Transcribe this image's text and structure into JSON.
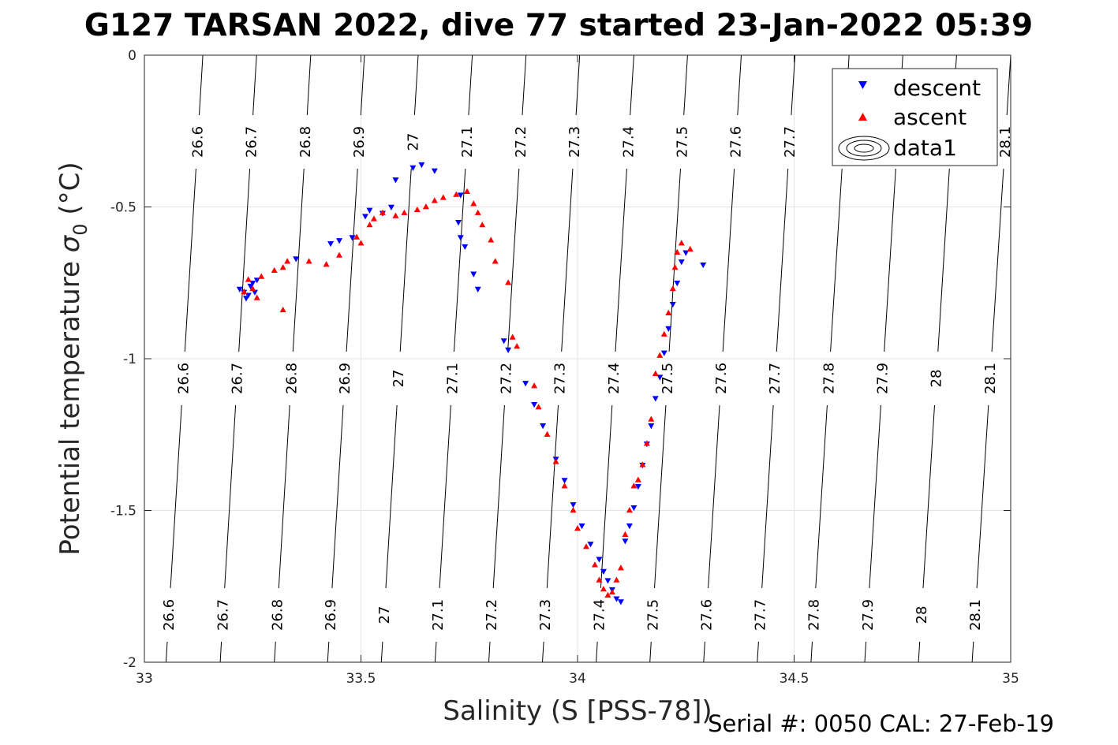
{
  "chart_data": {
    "type": "scatter",
    "title": "G127 TARSAN 2022, dive 77 started 23-Jan-2022 05:39",
    "xlabel": "Salinity (S [PSS-78])",
    "ylabel_main": "Potential temperature ",
    "ylabel_sym": "σ",
    "ylabel_sub": "0",
    "ylabel_unit": " (°C)",
    "footer": "Serial #: 0050  CAL: 27-Feb-19",
    "xlim": [
      33,
      35
    ],
    "ylim": [
      -2,
      0
    ],
    "grid": true,
    "legend_position": "top-right",
    "x_ticks": [
      {
        "value": 33,
        "label": "33"
      },
      {
        "value": 33.5,
        "label": "33.5"
      },
      {
        "value": 34,
        "label": "34"
      },
      {
        "value": 34.5,
        "label": "34.5"
      },
      {
        "value": 35,
        "label": "35"
      }
    ],
    "y_ticks": [
      {
        "value": 0,
        "label": "0"
      },
      {
        "value": -0.5,
        "label": "-0.5"
      },
      {
        "value": -1,
        "label": "-1"
      },
      {
        "value": -1.5,
        "label": "-1.5"
      },
      {
        "value": -2,
        "label": "-2"
      }
    ],
    "isopycnals": [
      {
        "label": "26.6",
        "s_top": 33.135,
        "s_bottom": 33.05
      },
      {
        "label": "26.7",
        "s_top": 33.259,
        "s_bottom": 33.175
      },
      {
        "label": "26.8",
        "s_top": 33.384,
        "s_bottom": 33.3
      },
      {
        "label": "26.9",
        "s_top": 33.508,
        "s_bottom": 33.423
      },
      {
        "label": "27",
        "s_top": 33.632,
        "s_bottom": 33.547
      },
      {
        "label": "27.1",
        "s_top": 33.757,
        "s_bottom": 33.671
      },
      {
        "label": "27.2",
        "s_top": 33.881,
        "s_bottom": 33.795
      },
      {
        "label": "27.3",
        "s_top": 34.005,
        "s_bottom": 33.919
      },
      {
        "label": "27.4",
        "s_top": 34.13,
        "s_bottom": 34.043
      },
      {
        "label": "27.5",
        "s_top": 34.254,
        "s_bottom": 34.167
      },
      {
        "label": "27.6",
        "s_top": 34.378,
        "s_bottom": 34.291
      },
      {
        "label": "27.7",
        "s_top": 34.502,
        "s_bottom": 34.415
      },
      {
        "label": "27.8",
        "s_top": 34.627,
        "s_bottom": 34.539
      },
      {
        "label": "27.9",
        "s_top": 34.751,
        "s_bottom": 34.663
      },
      {
        "label": "28",
        "s_top": 34.875,
        "s_bottom": 34.787
      },
      {
        "label": "28.1",
        "s_top": 35.0,
        "s_bottom": 34.911
      }
    ],
    "series": [
      {
        "name": "descent",
        "marker": "triangle-down",
        "color": "#0000ff",
        "points": [
          [
            33.22,
            -0.77
          ],
          [
            33.23,
            -0.78
          ],
          [
            33.24,
            -0.79
          ],
          [
            33.245,
            -0.76
          ],
          [
            33.25,
            -0.75
          ],
          [
            33.235,
            -0.8
          ],
          [
            33.26,
            -0.74
          ],
          [
            33.255,
            -0.78
          ],
          [
            33.35,
            -0.67
          ],
          [
            33.43,
            -0.62
          ],
          [
            33.45,
            -0.61
          ],
          [
            33.48,
            -0.6
          ],
          [
            33.51,
            -0.53
          ],
          [
            33.52,
            -0.51
          ],
          [
            33.55,
            -0.52
          ],
          [
            33.57,
            -0.5
          ],
          [
            33.58,
            -0.41
          ],
          [
            33.62,
            -0.37
          ],
          [
            33.64,
            -0.36
          ],
          [
            33.67,
            -0.38
          ],
          [
            33.73,
            -0.46
          ],
          [
            33.725,
            -0.55
          ],
          [
            33.73,
            -0.6
          ],
          [
            33.74,
            -0.63
          ],
          [
            33.76,
            -0.72
          ],
          [
            33.77,
            -0.77
          ],
          [
            33.83,
            -0.94
          ],
          [
            33.84,
            -0.97
          ],
          [
            33.88,
            -1.08
          ],
          [
            33.9,
            -1.15
          ],
          [
            33.92,
            -1.22
          ],
          [
            33.95,
            -1.33
          ],
          [
            33.97,
            -1.4
          ],
          [
            33.99,
            -1.48
          ],
          [
            34.01,
            -1.55
          ],
          [
            34.03,
            -1.61
          ],
          [
            34.05,
            -1.66
          ],
          [
            34.06,
            -1.7
          ],
          [
            34.07,
            -1.73
          ],
          [
            34.08,
            -1.76
          ],
          [
            34.09,
            -1.79
          ],
          [
            34.1,
            -1.8
          ],
          [
            34.11,
            -1.6
          ],
          [
            34.12,
            -1.55
          ],
          [
            34.13,
            -1.49
          ],
          [
            34.14,
            -1.42
          ],
          [
            34.15,
            -1.35
          ],
          [
            34.16,
            -1.28
          ],
          [
            34.17,
            -1.22
          ],
          [
            34.18,
            -1.13
          ],
          [
            34.19,
            -1.06
          ],
          [
            34.2,
            -0.98
          ],
          [
            34.21,
            -0.9
          ],
          [
            34.22,
            -0.82
          ],
          [
            34.23,
            -0.75
          ],
          [
            34.24,
            -0.68
          ],
          [
            34.25,
            -0.65
          ],
          [
            34.29,
            -0.69
          ]
        ]
      },
      {
        "name": "ascent",
        "marker": "triangle-up",
        "color": "#ff0000",
        "points": [
          [
            33.23,
            -0.78
          ],
          [
            33.25,
            -0.77
          ],
          [
            33.26,
            -0.8
          ],
          [
            33.24,
            -0.74
          ],
          [
            33.27,
            -0.73
          ],
          [
            33.3,
            -0.71
          ],
          [
            33.32,
            -0.7
          ],
          [
            33.33,
            -0.68
          ],
          [
            33.32,
            -0.84
          ],
          [
            33.38,
            -0.68
          ],
          [
            33.42,
            -0.69
          ],
          [
            33.45,
            -0.66
          ],
          [
            33.49,
            -0.6
          ],
          [
            33.5,
            -0.62
          ],
          [
            33.52,
            -0.56
          ],
          [
            33.53,
            -0.54
          ],
          [
            33.55,
            -0.52
          ],
          [
            33.58,
            -0.53
          ],
          [
            33.6,
            -0.52
          ],
          [
            33.63,
            -0.51
          ],
          [
            33.65,
            -0.5
          ],
          [
            33.67,
            -0.48
          ],
          [
            33.69,
            -0.47
          ],
          [
            33.72,
            -0.46
          ],
          [
            33.745,
            -0.45
          ],
          [
            33.76,
            -0.49
          ],
          [
            33.77,
            -0.52
          ],
          [
            33.78,
            -0.56
          ],
          [
            33.8,
            -0.61
          ],
          [
            33.81,
            -0.68
          ],
          [
            33.84,
            -0.75
          ],
          [
            33.85,
            -0.93
          ],
          [
            33.86,
            -0.96
          ],
          [
            33.9,
            -1.09
          ],
          [
            33.91,
            -1.16
          ],
          [
            33.93,
            -1.25
          ],
          [
            33.95,
            -1.34
          ],
          [
            33.97,
            -1.42
          ],
          [
            33.99,
            -1.5
          ],
          [
            34.0,
            -1.56
          ],
          [
            34.02,
            -1.62
          ],
          [
            34.04,
            -1.68
          ],
          [
            34.05,
            -1.73
          ],
          [
            34.06,
            -1.76
          ],
          [
            34.07,
            -1.78
          ],
          [
            34.08,
            -1.77
          ],
          [
            34.09,
            -1.73
          ],
          [
            34.1,
            -1.69
          ],
          [
            34.11,
            -1.58
          ],
          [
            34.12,
            -1.5
          ],
          [
            34.13,
            -1.42
          ],
          [
            34.14,
            -1.4
          ],
          [
            34.15,
            -1.35
          ],
          [
            34.16,
            -1.28
          ],
          [
            34.17,
            -1.2
          ],
          [
            34.18,
            -1.05
          ],
          [
            34.19,
            -0.99
          ],
          [
            34.2,
            -0.92
          ],
          [
            34.21,
            -0.85
          ],
          [
            34.22,
            -0.77
          ],
          [
            34.225,
            -0.7
          ],
          [
            34.23,
            -0.65
          ],
          [
            34.24,
            -0.62
          ],
          [
            34.26,
            -0.64
          ]
        ]
      },
      {
        "name": "data1",
        "marker": "contour"
      }
    ]
  }
}
